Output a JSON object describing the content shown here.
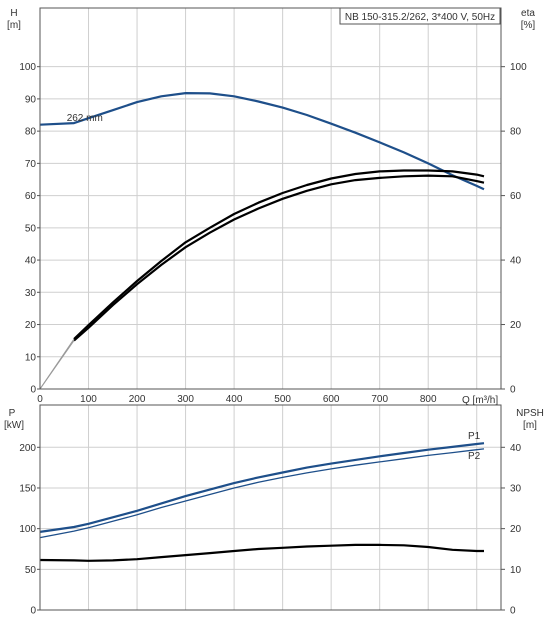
{
  "chart_data": [
    {
      "type": "line",
      "info": "NB 150-315.2/262, 3*400 V, 50Hz",
      "left_axis": {
        "label": "H",
        "unit": "[m]",
        "ticks": [
          0,
          10,
          20,
          30,
          40,
          50,
          60,
          70,
          80,
          90,
          100
        ]
      },
      "right_axis": {
        "label": "eta",
        "unit": "[%]",
        "ticks": [
          0,
          20,
          40,
          60,
          80,
          100
        ]
      },
      "x_axis": {
        "label": "Q [m³/h]",
        "ticks": [
          0,
          100,
          200,
          300,
          400,
          500,
          600,
          700,
          800
        ],
        "range": [
          0,
          950
        ]
      },
      "series": [
        {
          "name": "262 mm",
          "axis": "left",
          "color": "#1e4f8a",
          "x": [
            0,
            70,
            100,
            150,
            200,
            250,
            300,
            350,
            400,
            450,
            500,
            550,
            600,
            650,
            700,
            750,
            800,
            850,
            900,
            915
          ],
          "y": [
            82,
            82.5,
            84,
            86.5,
            89,
            90.8,
            91.8,
            91.7,
            90.8,
            89.2,
            87.3,
            85,
            82.3,
            79.5,
            76.5,
            73.4,
            70,
            66.3,
            63,
            62
          ]
        },
        {
          "name": "",
          "axis": "right",
          "color": "#000000",
          "x": [
            70,
            100,
            150,
            200,
            250,
            300,
            350,
            400,
            450,
            500,
            550,
            600,
            650,
            700,
            750,
            800,
            850,
            900,
            915
          ],
          "y": [
            15,
            19,
            26,
            32.5,
            38.5,
            44,
            48.5,
            52.6,
            56,
            59,
            61.5,
            63.5,
            64.8,
            65.5,
            66,
            66.2,
            66,
            64.5,
            64
          ]
        },
        {
          "name": "",
          "axis": "right",
          "color": "#000000",
          "x": [
            70,
            100,
            150,
            200,
            250,
            300,
            350,
            400,
            450,
            500,
            550,
            600,
            650,
            700,
            750,
            800,
            850,
            900,
            915
          ],
          "y": [
            15.5,
            19.8,
            26.8,
            33.5,
            39.7,
            45.5,
            50,
            54.3,
            57.8,
            60.8,
            63.3,
            65.3,
            66.7,
            67.5,
            67.8,
            67.8,
            67.5,
            66.5,
            66
          ]
        }
      ]
    },
    {
      "type": "line",
      "left_axis": {
        "label": "P",
        "unit": "[kW]",
        "ticks": [
          0,
          50,
          100,
          150,
          200
        ]
      },
      "right_axis": {
        "label": "NPSH",
        "unit": "[m]",
        "ticks": [
          0,
          10,
          20,
          30,
          40
        ]
      },
      "x_axis": {
        "range": [
          0,
          950
        ]
      },
      "series": [
        {
          "name": "P1",
          "axis": "left",
          "color": "#1e4f8a",
          "x": [
            0,
            70,
            100,
            150,
            200,
            250,
            300,
            350,
            400,
            450,
            500,
            550,
            600,
            650,
            700,
            750,
            800,
            850,
            900,
            915
          ],
          "y": [
            96,
            102,
            106,
            114,
            122,
            131,
            140,
            148,
            156,
            163,
            169,
            175,
            180,
            184.5,
            189,
            193,
            197,
            200.5,
            204,
            205
          ]
        },
        {
          "name": "P2",
          "axis": "left",
          "color": "#1e4f8a",
          "x": [
            0,
            70,
            100,
            150,
            200,
            250,
            300,
            350,
            400,
            450,
            500,
            550,
            600,
            650,
            700,
            750,
            800,
            850,
            900,
            915
          ],
          "y": [
            89,
            97,
            101,
            109,
            117,
            126,
            134,
            142,
            150,
            157,
            163,
            168.5,
            173.5,
            178,
            182,
            186,
            190,
            193.5,
            197,
            198
          ]
        },
        {
          "name": "",
          "axis": "right",
          "color": "#000000",
          "x": [
            0,
            70,
            100,
            150,
            200,
            250,
            300,
            350,
            400,
            450,
            500,
            550,
            600,
            650,
            700,
            750,
            800,
            850,
            900,
            915
          ],
          "y": [
            12.3,
            12.2,
            12.1,
            12.2,
            12.5,
            13,
            13.5,
            14,
            14.5,
            15,
            15.3,
            15.6,
            15.8,
            16,
            16,
            15.9,
            15.5,
            14.8,
            14.5,
            14.5
          ]
        }
      ]
    }
  ]
}
